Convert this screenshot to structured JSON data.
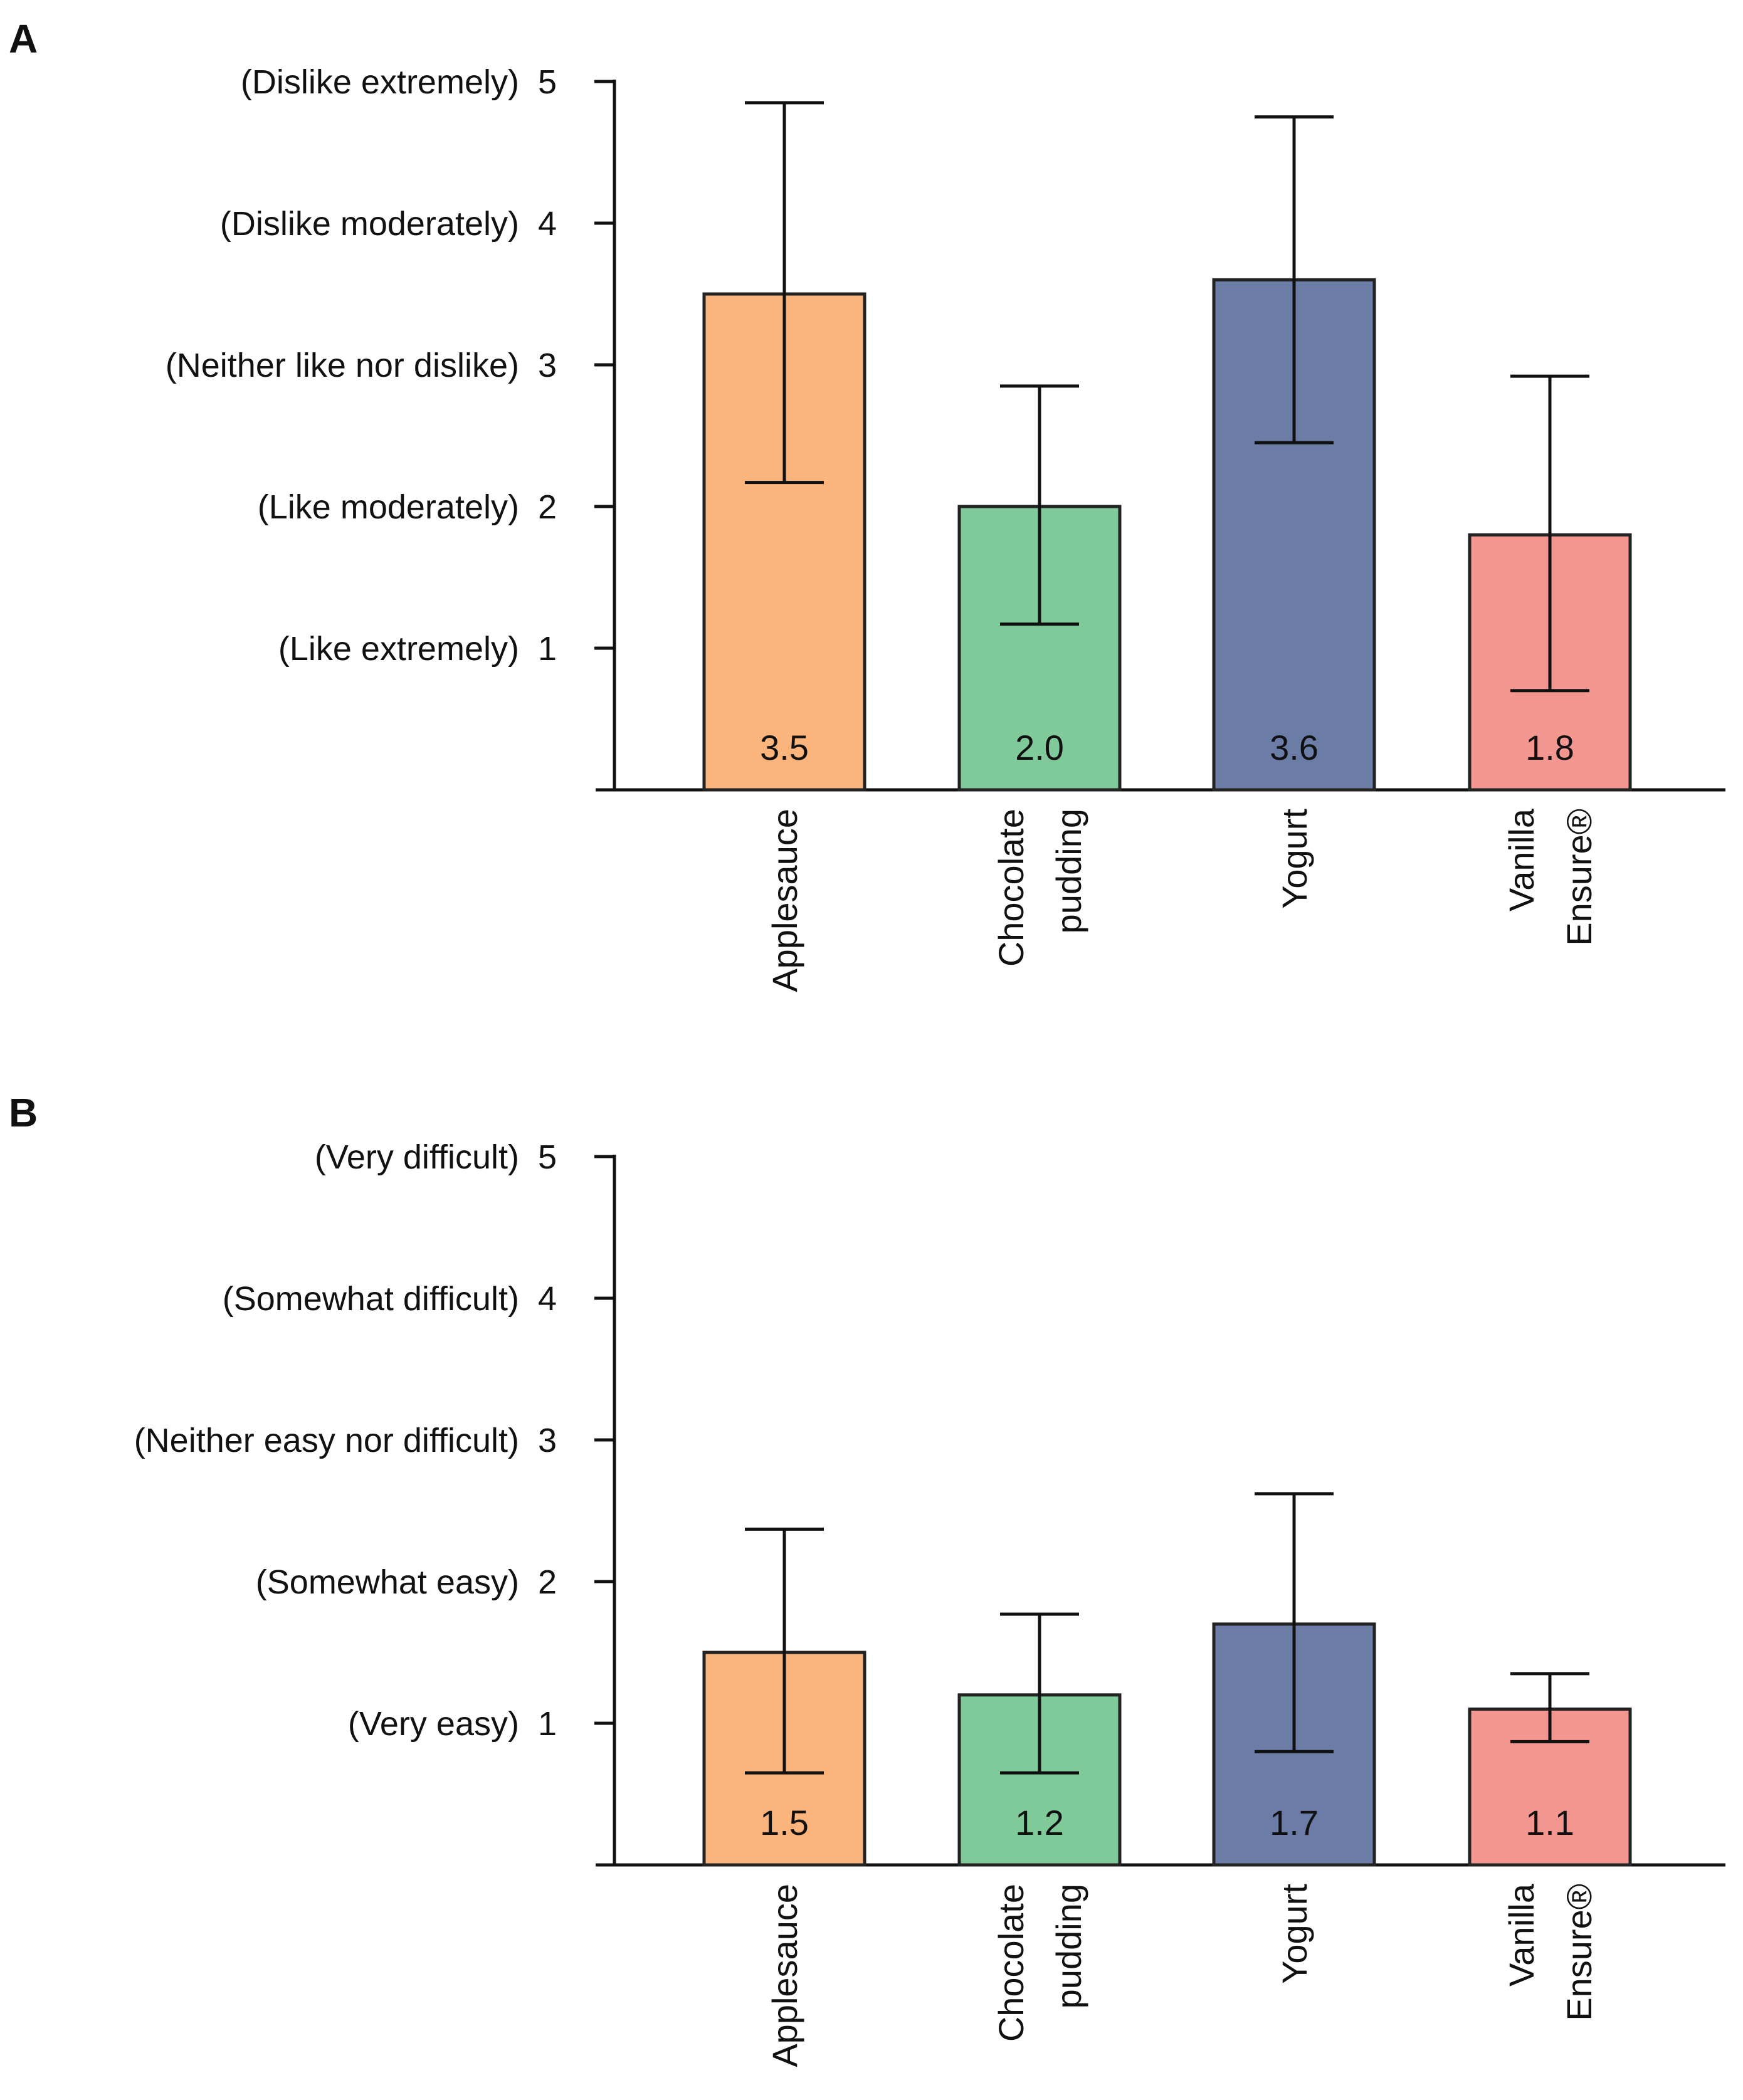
{
  "chart_data": [
    {
      "panel": "A",
      "type": "bar",
      "categories": [
        [
          "Applesauce"
        ],
        [
          "Chocolate",
          "pudding"
        ],
        [
          "Yogurt"
        ],
        [
          "Vanilla",
          "Ensure®"
        ]
      ],
      "values": [
        3.5,
        2.0,
        3.6,
        1.8
      ],
      "value_labels": [
        "3.5",
        "2.0",
        "3.6",
        "1.8"
      ],
      "error_upper": [
        4.85,
        2.85,
        4.75,
        2.92
      ],
      "error_lower": [
        2.17,
        1.17,
        2.45,
        0.7
      ],
      "yticks": [
        1,
        2,
        3,
        4,
        5
      ],
      "ytick_labels": [
        "(Like extremely)  1",
        "(Like moderately)  2",
        "(Neither like nor dislike)  3",
        "(Dislike moderately)  4",
        "(Dislike extremely)  5"
      ],
      "ylim": [
        0,
        5
      ],
      "colors": [
        "#fbb47c",
        "#7fca98",
        "#6b7ca7",
        "#f49690"
      ]
    },
    {
      "panel": "B",
      "type": "bar",
      "categories": [
        [
          "Applesauce"
        ],
        [
          "Chocolate",
          "pudding"
        ],
        [
          "Yogurt"
        ],
        [
          "Vanilla",
          "Ensure®"
        ]
      ],
      "values": [
        1.5,
        1.2,
        1.7,
        1.1
      ],
      "value_labels": [
        "1.5",
        "1.2",
        "1.7",
        "1.1"
      ],
      "error_upper": [
        2.37,
        1.77,
        2.62,
        1.35
      ],
      "error_lower": [
        0.65,
        0.65,
        0.8,
        0.87
      ],
      "yticks": [
        1,
        2,
        3,
        4,
        5
      ],
      "ytick_labels": [
        "(Very easy)  1",
        "(Somewhat easy)  2",
        "(Neither easy nor difficult)  3",
        "(Somewhat difficult)  4",
        "(Very difficult)  5"
      ],
      "ylim": [
        0,
        5
      ],
      "colors": [
        "#fbb47c",
        "#7fca98",
        "#6b7ca7",
        "#f49690"
      ]
    }
  ]
}
